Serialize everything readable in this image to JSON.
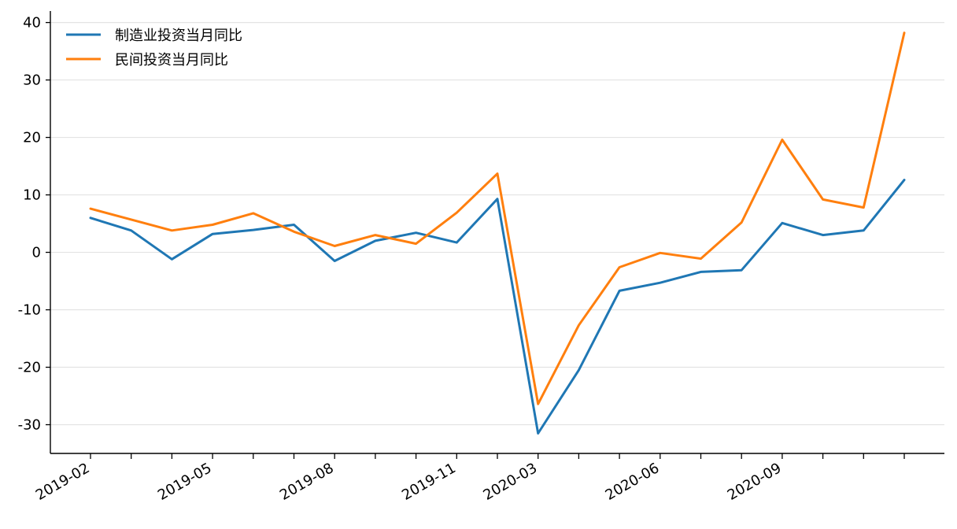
{
  "chart_data": {
    "type": "line",
    "title": "",
    "xlabel": "",
    "ylabel": "",
    "x": [
      "2019-02",
      "2019-03",
      "2019-04",
      "2019-05",
      "2019-06",
      "2019-07",
      "2019-08",
      "2019-09",
      "2019-10",
      "2019-11",
      "2019-12",
      "2020-03",
      "2020-04",
      "2020-05",
      "2020-06",
      "2020-07",
      "2020-08",
      "2020-09",
      "2020-10",
      "2020-11",
      "2020-12"
    ],
    "x_tick_labels": [
      "2019-02",
      "",
      "",
      "2019-05",
      "",
      "",
      "2019-08",
      "",
      "",
      "2019-11",
      "",
      "2020-03",
      "",
      "",
      "2020-06",
      "",
      "",
      "2020-09",
      "",
      "",
      ""
    ],
    "ylim": [
      -35,
      42
    ],
    "y_ticks": [
      -30,
      -20,
      -10,
      0,
      10,
      20,
      30,
      40
    ],
    "y_tick_labels": [
      "-30",
      "-20",
      "-10",
      "0",
      "10",
      "20",
      "30",
      "40"
    ],
    "grid": "horizontal",
    "legend_position": "top-left",
    "series": [
      {
        "name": "制造业投资当月同比",
        "color": "#1f77b4",
        "values": [
          6.0,
          3.8,
          -1.2,
          3.2,
          3.9,
          4.8,
          -1.5,
          2.0,
          3.4,
          1.7,
          9.3,
          -31.5,
          -20.5,
          -6.7,
          -5.3,
          -3.4,
          -3.1,
          5.1,
          3.0,
          3.8,
          12.6
        ]
      },
      {
        "name": "民间投资当月同比",
        "color": "#ff7f0e",
        "values": [
          7.6,
          5.7,
          3.8,
          4.8,
          6.8,
          3.6,
          1.1,
          3.0,
          1.5,
          6.9,
          13.7,
          -26.4,
          -12.7,
          -2.6,
          -0.1,
          -1.1,
          5.2,
          19.6,
          9.2,
          7.8,
          38.2
        ]
      }
    ]
  }
}
